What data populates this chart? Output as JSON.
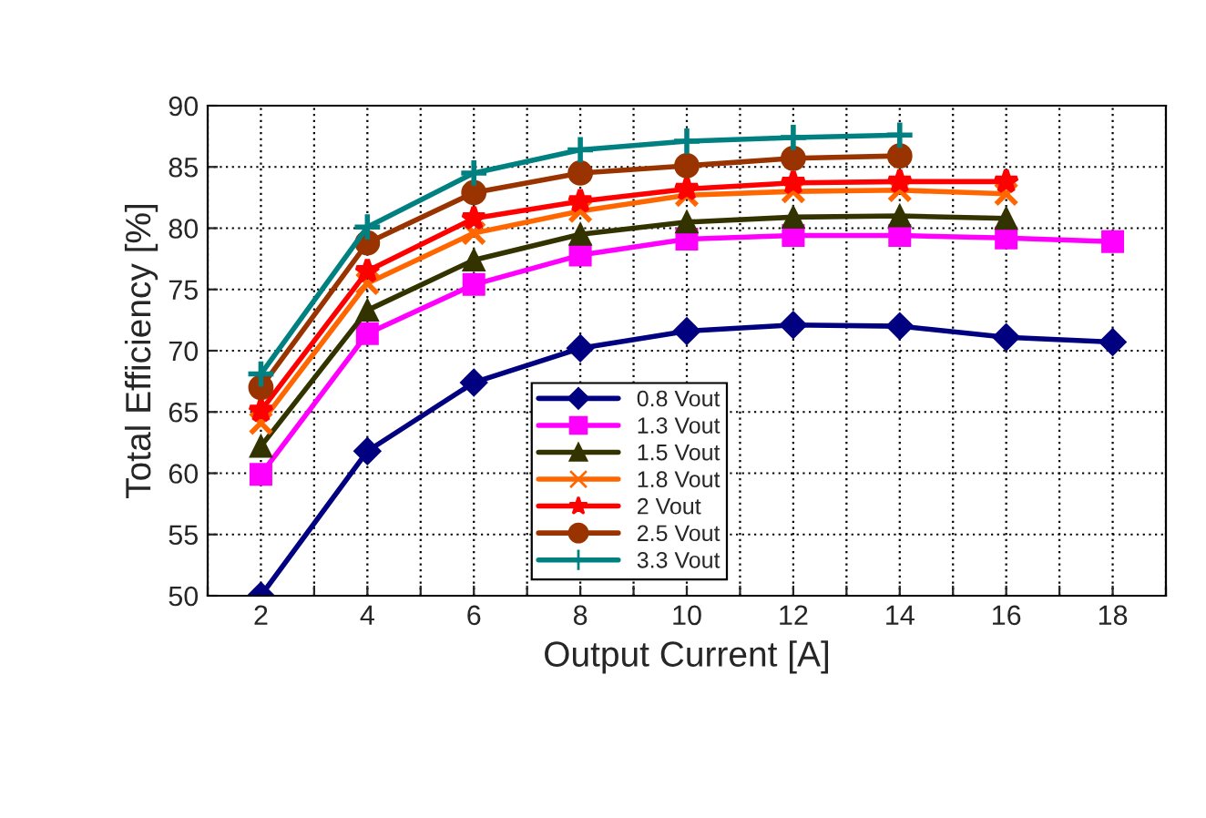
{
  "chart_data": {
    "type": "line",
    "xlabel": "Output Current [A]",
    "ylabel": "Total Efficiency [%]",
    "xlim": [
      1,
      19
    ],
    "ylim": [
      50,
      90
    ],
    "xticks": [
      {
        "value": 1,
        "label": null
      },
      2,
      {
        "value": 3,
        "label": null
      },
      4,
      {
        "value": 5,
        "label": null
      },
      6,
      {
        "value": 7,
        "label": null
      },
      8,
      {
        "value": 9,
        "label": null
      },
      10,
      {
        "value": 11,
        "label": null
      },
      12,
      {
        "value": 13,
        "label": null
      },
      14,
      {
        "value": 15,
        "label": null
      },
      16,
      {
        "value": 17,
        "label": null
      },
      18,
      {
        "value": 19,
        "label": null
      }
    ],
    "yticks": [
      50,
      55,
      60,
      65,
      70,
      75,
      80,
      85,
      90
    ],
    "grid": true,
    "legend": "bottom",
    "line_style": "solid",
    "series": [
      {
        "name": "0.8 Vout",
        "color": "#000080",
        "marker": "diamond",
        "x": [
          2,
          4,
          6,
          8,
          10,
          12,
          14,
          16,
          18
        ],
        "values": [
          50.0,
          61.8,
          67.4,
          70.2,
          71.6,
          72.1,
          72.0,
          71.1,
          70.7
        ]
      },
      {
        "name": "1.3 Vout",
        "color": "#ff00ff",
        "marker": "square",
        "x": [
          2,
          4,
          6,
          8,
          10,
          12,
          14,
          16,
          18
        ],
        "values": [
          59.9,
          71.4,
          75.4,
          77.8,
          79.1,
          79.4,
          79.4,
          79.2,
          78.9
        ]
      },
      {
        "name": "1.5 Vout",
        "color": "#333300",
        "marker": "triangle",
        "x": [
          2,
          4,
          6,
          8,
          10,
          12,
          14,
          16
        ],
        "values": [
          62.2,
          73.3,
          77.4,
          79.5,
          80.5,
          80.9,
          81.0,
          80.8
        ]
      },
      {
        "name": "1.8 Vout",
        "color": "#ff6600",
        "marker": "cross",
        "x": [
          2,
          4,
          6,
          8,
          10,
          12,
          14,
          16
        ],
        "values": [
          64.1,
          75.5,
          79.6,
          81.4,
          82.7,
          83.0,
          83.1,
          82.8
        ]
      },
      {
        "name": "2 Vout",
        "color": "#ff0000",
        "marker": "star",
        "x": [
          2,
          4,
          6,
          8,
          10,
          12,
          14,
          16
        ],
        "values": [
          65.1,
          76.5,
          80.8,
          82.2,
          83.2,
          83.7,
          83.8,
          83.8
        ]
      },
      {
        "name": "2.5 Vout",
        "color": "#993300",
        "marker": "circle",
        "x": [
          2,
          4,
          6,
          8,
          10,
          12,
          14
        ],
        "values": [
          67.0,
          78.8,
          82.9,
          84.5,
          85.1,
          85.7,
          85.9
        ]
      },
      {
        "name": "3.3 Vout",
        "color": "#008080",
        "marker": "plus",
        "x": [
          2,
          4,
          6,
          8,
          10,
          12,
          14
        ],
        "values": [
          68.1,
          80.1,
          84.5,
          86.4,
          87.1,
          87.4,
          87.6
        ]
      }
    ]
  }
}
